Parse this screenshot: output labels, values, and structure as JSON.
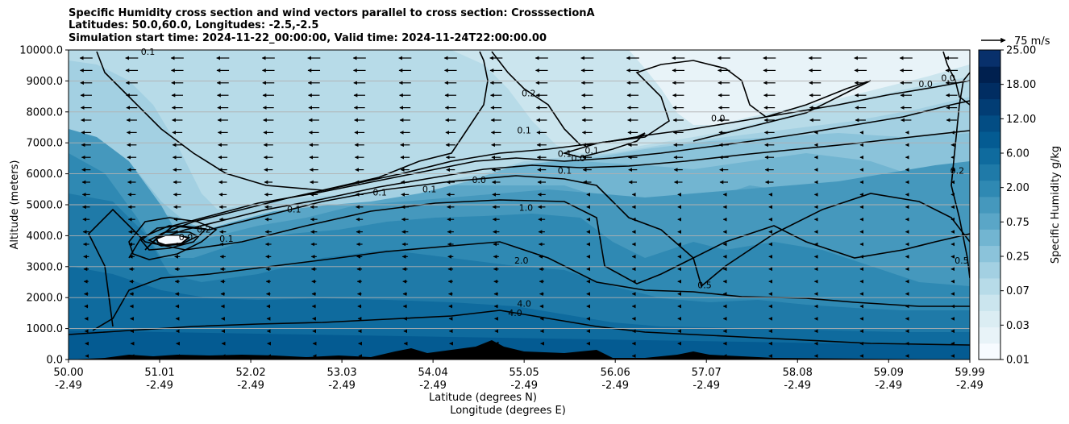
{
  "chart_data": {
    "type": "heatmap",
    "title_lines": [
      "Specific Humidity cross section and wind vectors parallel to cross section: CrosssectionA",
      "Latitudes: 50.0,60.0, Longitudes: -2.5,-2.5",
      "Simulation start time: 2024-11-22_00:00:00, Valid time: 2024-11-24T22:00:00.00"
    ],
    "xlabel": "Latitude (degrees N)",
    "xlabel2": "Longitude (degrees E)",
    "ylabel": "Altitude (meters)",
    "x_ticks": [
      {
        "lat": "50.00",
        "lon": "-2.49"
      },
      {
        "lat": "51.01",
        "lon": "-2.49"
      },
      {
        "lat": "52.02",
        "lon": "-2.49"
      },
      {
        "lat": "53.03",
        "lon": "-2.49"
      },
      {
        "lat": "54.04",
        "lon": "-2.49"
      },
      {
        "lat": "55.05",
        "lon": "-2.49"
      },
      {
        "lat": "56.06",
        "lon": "-2.49"
      },
      {
        "lat": "57.07",
        "lon": "-2.49"
      },
      {
        "lat": "58.08",
        "lon": "-2.49"
      },
      {
        "lat": "59.09",
        "lon": "-2.49"
      },
      {
        "lat": "59.99",
        "lon": "-2.49"
      }
    ],
    "xlim": [
      50.0,
      59.99
    ],
    "y_ticks": [
      "0.0",
      "1000.0",
      "2000.0",
      "3000.0",
      "4000.0",
      "5000.0",
      "6000.0",
      "7000.0",
      "8000.0",
      "9000.0",
      "10000.0"
    ],
    "ylim": [
      0,
      10000
    ],
    "grid": "horizontal",
    "colorbar": {
      "label": "Specific Humidity g/kg",
      "tick_labels": [
        "0.01",
        "0.03",
        "0.07",
        "0.25",
        "0.75",
        "2.00",
        "6.00",
        "12.00",
        "18.00",
        "25.00"
      ],
      "colors": [
        "#f7fbff",
        "#e8f3f8",
        "#dbedf3",
        "#cbe5ee",
        "#b7dbe8",
        "#a3d0e2",
        "#8bc3da",
        "#72b5d1",
        "#5aa6c7",
        "#4598bd",
        "#2f89b3",
        "#1f7aa8",
        "#0f6b9e",
        "#045b92",
        "#034d84",
        "#023d74",
        "#012d62",
        "#00204f",
        "#08306b"
      ]
    },
    "wind_reference": {
      "label": "75 m/s",
      "speed": 75
    },
    "contour_labels": [
      {
        "text": "0.1",
        "x": 50.88,
        "y": 9850
      },
      {
        "text": "0.2",
        "x": 55.1,
        "y": 8500
      },
      {
        "text": "0.1",
        "x": 55.05,
        "y": 7300
      },
      {
        "text": "0.1",
        "x": 55.5,
        "y": 6550
      },
      {
        "text": "0.1",
        "x": 55.8,
        "y": 6650
      },
      {
        "text": "0.1",
        "x": 55.5,
        "y": 6000
      },
      {
        "text": "0.0",
        "x": 55.65,
        "y": 6400
      },
      {
        "text": "0.0",
        "x": 54.55,
        "y": 5700
      },
      {
        "text": "0.1",
        "x": 53.45,
        "y": 5300
      },
      {
        "text": "0.1",
        "x": 54.0,
        "y": 5400
      },
      {
        "text": "0.1",
        "x": 52.5,
        "y": 4750
      },
      {
        "text": "1.0",
        "x": 55.07,
        "y": 4800
      },
      {
        "text": "0.1",
        "x": 51.75,
        "y": 3800
      },
      {
        "text": "0.2",
        "x": 51.5,
        "y": 4100
      },
      {
        "text": "0.0",
        "x": 51.3,
        "y": 3850
      },
      {
        "text": "2.0",
        "x": 55.02,
        "y": 3100
      },
      {
        "text": "0.5",
        "x": 57.05,
        "y": 2300
      },
      {
        "text": "4.0",
        "x": 55.05,
        "y": 1700
      },
      {
        "text": "4.0",
        "x": 54.95,
        "y": 1400
      },
      {
        "text": "0.0",
        "x": 57.2,
        "y": 7700
      },
      {
        "text": "0.0",
        "x": 59.5,
        "y": 8800
      },
      {
        "text": "0.0",
        "x": 59.75,
        "y": 9000
      },
      {
        "text": "0.2",
        "x": 59.85,
        "y": 6000
      },
      {
        "text": "0.5",
        "x": 59.9,
        "y": 3100
      }
    ]
  }
}
